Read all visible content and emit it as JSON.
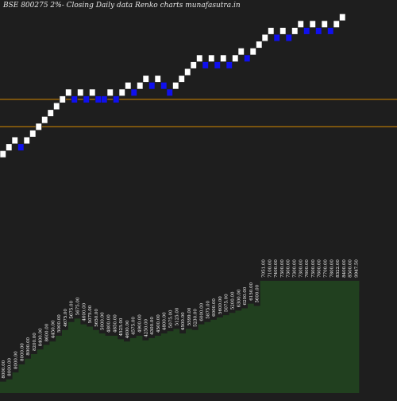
{
  "title": "BSE 800275 2%-  Closing Daily data  Renko  charts munafasutra.in",
  "colors": {
    "background": "#1e1e1e",
    "up_brick": "#ffffff",
    "down_brick": "#1010ee",
    "level_line": "#d68a00",
    "volume_area": "#21401f",
    "volume_shadow": "#000000",
    "label_text": "#ffffff"
  },
  "chart_data": {
    "type": "renko",
    "bricks": [
      {
        "dir": "up",
        "level": 0
      },
      {
        "dir": "up",
        "level": 1
      },
      {
        "dir": "up",
        "level": 2
      },
      {
        "dir": "down",
        "level": 1
      },
      {
        "dir": "up",
        "level": 2
      },
      {
        "dir": "up",
        "level": 3
      },
      {
        "dir": "up",
        "level": 4
      },
      {
        "dir": "up",
        "level": 5
      },
      {
        "dir": "up",
        "level": 6
      },
      {
        "dir": "up",
        "level": 7
      },
      {
        "dir": "up",
        "level": 8
      },
      {
        "dir": "up",
        "level": 9
      },
      {
        "dir": "down",
        "level": 8
      },
      {
        "dir": "up",
        "level": 9
      },
      {
        "dir": "down",
        "level": 8
      },
      {
        "dir": "up",
        "level": 9
      },
      {
        "dir": "down",
        "level": 8
      },
      {
        "dir": "down",
        "level": 8
      },
      {
        "dir": "up",
        "level": 9
      },
      {
        "dir": "down",
        "level": 8
      },
      {
        "dir": "up",
        "level": 9
      },
      {
        "dir": "up",
        "level": 10
      },
      {
        "dir": "down",
        "level": 9
      },
      {
        "dir": "up",
        "level": 10
      },
      {
        "dir": "up",
        "level": 11
      },
      {
        "dir": "down",
        "level": 10
      },
      {
        "dir": "up",
        "level": 11
      },
      {
        "dir": "down",
        "level": 10
      },
      {
        "dir": "down",
        "level": 9
      },
      {
        "dir": "up",
        "level": 10
      },
      {
        "dir": "up",
        "level": 11
      },
      {
        "dir": "up",
        "level": 12
      },
      {
        "dir": "up",
        "level": 13
      },
      {
        "dir": "up",
        "level": 14
      },
      {
        "dir": "down",
        "level": 13
      },
      {
        "dir": "up",
        "level": 14
      },
      {
        "dir": "down",
        "level": 13
      },
      {
        "dir": "up",
        "level": 14
      },
      {
        "dir": "down",
        "level": 13
      },
      {
        "dir": "up",
        "level": 14
      },
      {
        "dir": "up",
        "level": 15
      },
      {
        "dir": "down",
        "level": 14
      },
      {
        "dir": "up",
        "level": 15
      },
      {
        "dir": "up",
        "level": 16
      },
      {
        "dir": "up",
        "level": 17
      },
      {
        "dir": "up",
        "level": 18
      },
      {
        "dir": "down",
        "level": 17
      },
      {
        "dir": "up",
        "level": 18
      },
      {
        "dir": "down",
        "level": 17
      },
      {
        "dir": "up",
        "level": 18
      },
      {
        "dir": "up",
        "level": 19
      },
      {
        "dir": "down",
        "level": 18
      },
      {
        "dir": "up",
        "level": 19
      },
      {
        "dir": "down",
        "level": 18
      },
      {
        "dir": "up",
        "level": 19
      },
      {
        "dir": "down",
        "level": 18
      },
      {
        "dir": "up",
        "level": 19
      },
      {
        "dir": "up",
        "level": 20
      }
    ],
    "levels": [
      8,
      4
    ],
    "volume_labels": [
      "8000.00",
      "8000.00",
      "8000.00",
      "8000.00",
      "8000.00",
      "8200.00",
      "8400.00",
      "8600.00",
      "4450.00",
      "5000.00",
      "4675.00",
      "5675.00",
      "5675.00",
      "4600.00",
      "5075.00",
      "5650.00",
      "5000.00",
      "4800.00",
      "4850.00",
      "4525.00",
      "4600.00",
      "4575.00",
      "4900.00",
      "4250.00",
      "4300.00",
      "4500.00",
      "4800.00",
      "5075.00",
      "5125.00",
      "4500.00",
      "5599.00",
      "5230.00",
      "6000.00",
      "5875.00",
      "6000.00",
      "5600.00",
      "5075.00",
      "5200.00",
      "6300.00",
      "6200.00",
      "6150.00",
      "5600.00",
      "7051.00",
      "7100.00",
      "7400.00",
      "7300.00",
      "7300.00",
      "7300.00",
      "7300.00",
      "7600.00",
      "7300.00",
      "7600.00",
      "7700.00",
      "7800.00",
      "8322.00",
      "8400.00",
      "8500.00",
      "9947.50"
    ],
    "volume_heights": [
      0.1,
      0.12,
      0.18,
      0.25,
      0.3,
      0.34,
      0.38,
      0.42,
      0.45,
      0.5,
      0.55,
      0.62,
      0.65,
      0.6,
      0.58,
      0.55,
      0.52,
      0.5,
      0.5,
      0.47,
      0.45,
      0.48,
      0.5,
      0.46,
      0.48,
      0.5,
      0.52,
      0.54,
      0.56,
      0.52,
      0.56,
      0.55,
      0.6,
      0.62,
      0.64,
      0.66,
      0.68,
      0.7,
      0.72,
      0.74,
      0.78,
      0.76,
      0.98,
      0.98,
      0.98,
      0.98,
      0.98,
      0.98,
      0.98,
      0.98,
      0.98,
      0.98,
      0.98,
      0.98,
      0.98,
      0.98,
      0.98,
      0.98
    ]
  }
}
